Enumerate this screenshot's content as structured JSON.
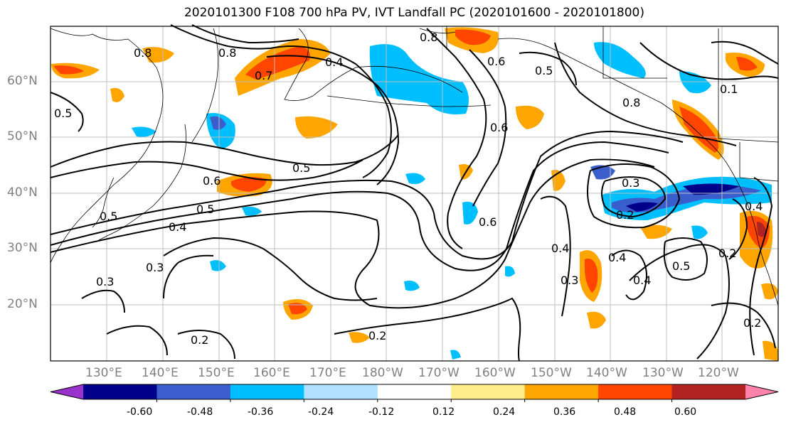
{
  "title": "2020101300 F108 700 hPa PV, IVT Landfall PC (2020101600 - 2020101800)",
  "lat_labels": [
    "60°N",
    "50°N",
    "40°N",
    "30°N",
    "20°N"
  ],
  "lon_labels": [
    "130°E",
    "140°E",
    "150°E",
    "160°E",
    "170°E",
    "180°W",
    "170°W",
    "160°W",
    "150°W",
    "140°W",
    "130°W",
    "120°W"
  ],
  "colorbar": {
    "colors": [
      "#9a32cd",
      "#00008b",
      "#3a5fcd",
      "#00bfff",
      "#b0e2ff",
      "#ffffff",
      "#ffec8b",
      "#ffa500",
      "#ff4500",
      "#b22222",
      "#ff82ab"
    ],
    "tick_labels": [
      "-0.60",
      "-0.48",
      "-0.36",
      "-0.24",
      "-0.12",
      "0.12",
      "0.24",
      "0.36",
      "0.48",
      "0.60"
    ]
  },
  "contour_labels": [
    "0.8",
    "0.7",
    "0.4",
    "0.5",
    "0.6",
    "0.8",
    "0.5",
    "0.5",
    "0.6",
    "0.5",
    "0.4",
    "0.3",
    "0.3",
    "0.2",
    "0.2",
    "0.6",
    "0.4",
    "0.3",
    "0.3",
    "0.2",
    "0.4",
    "0.4",
    "0.5",
    "0.2",
    "0.4",
    "0.2",
    "0.8",
    "0.1",
    "0.6",
    "0.5",
    "0.8"
  ]
}
